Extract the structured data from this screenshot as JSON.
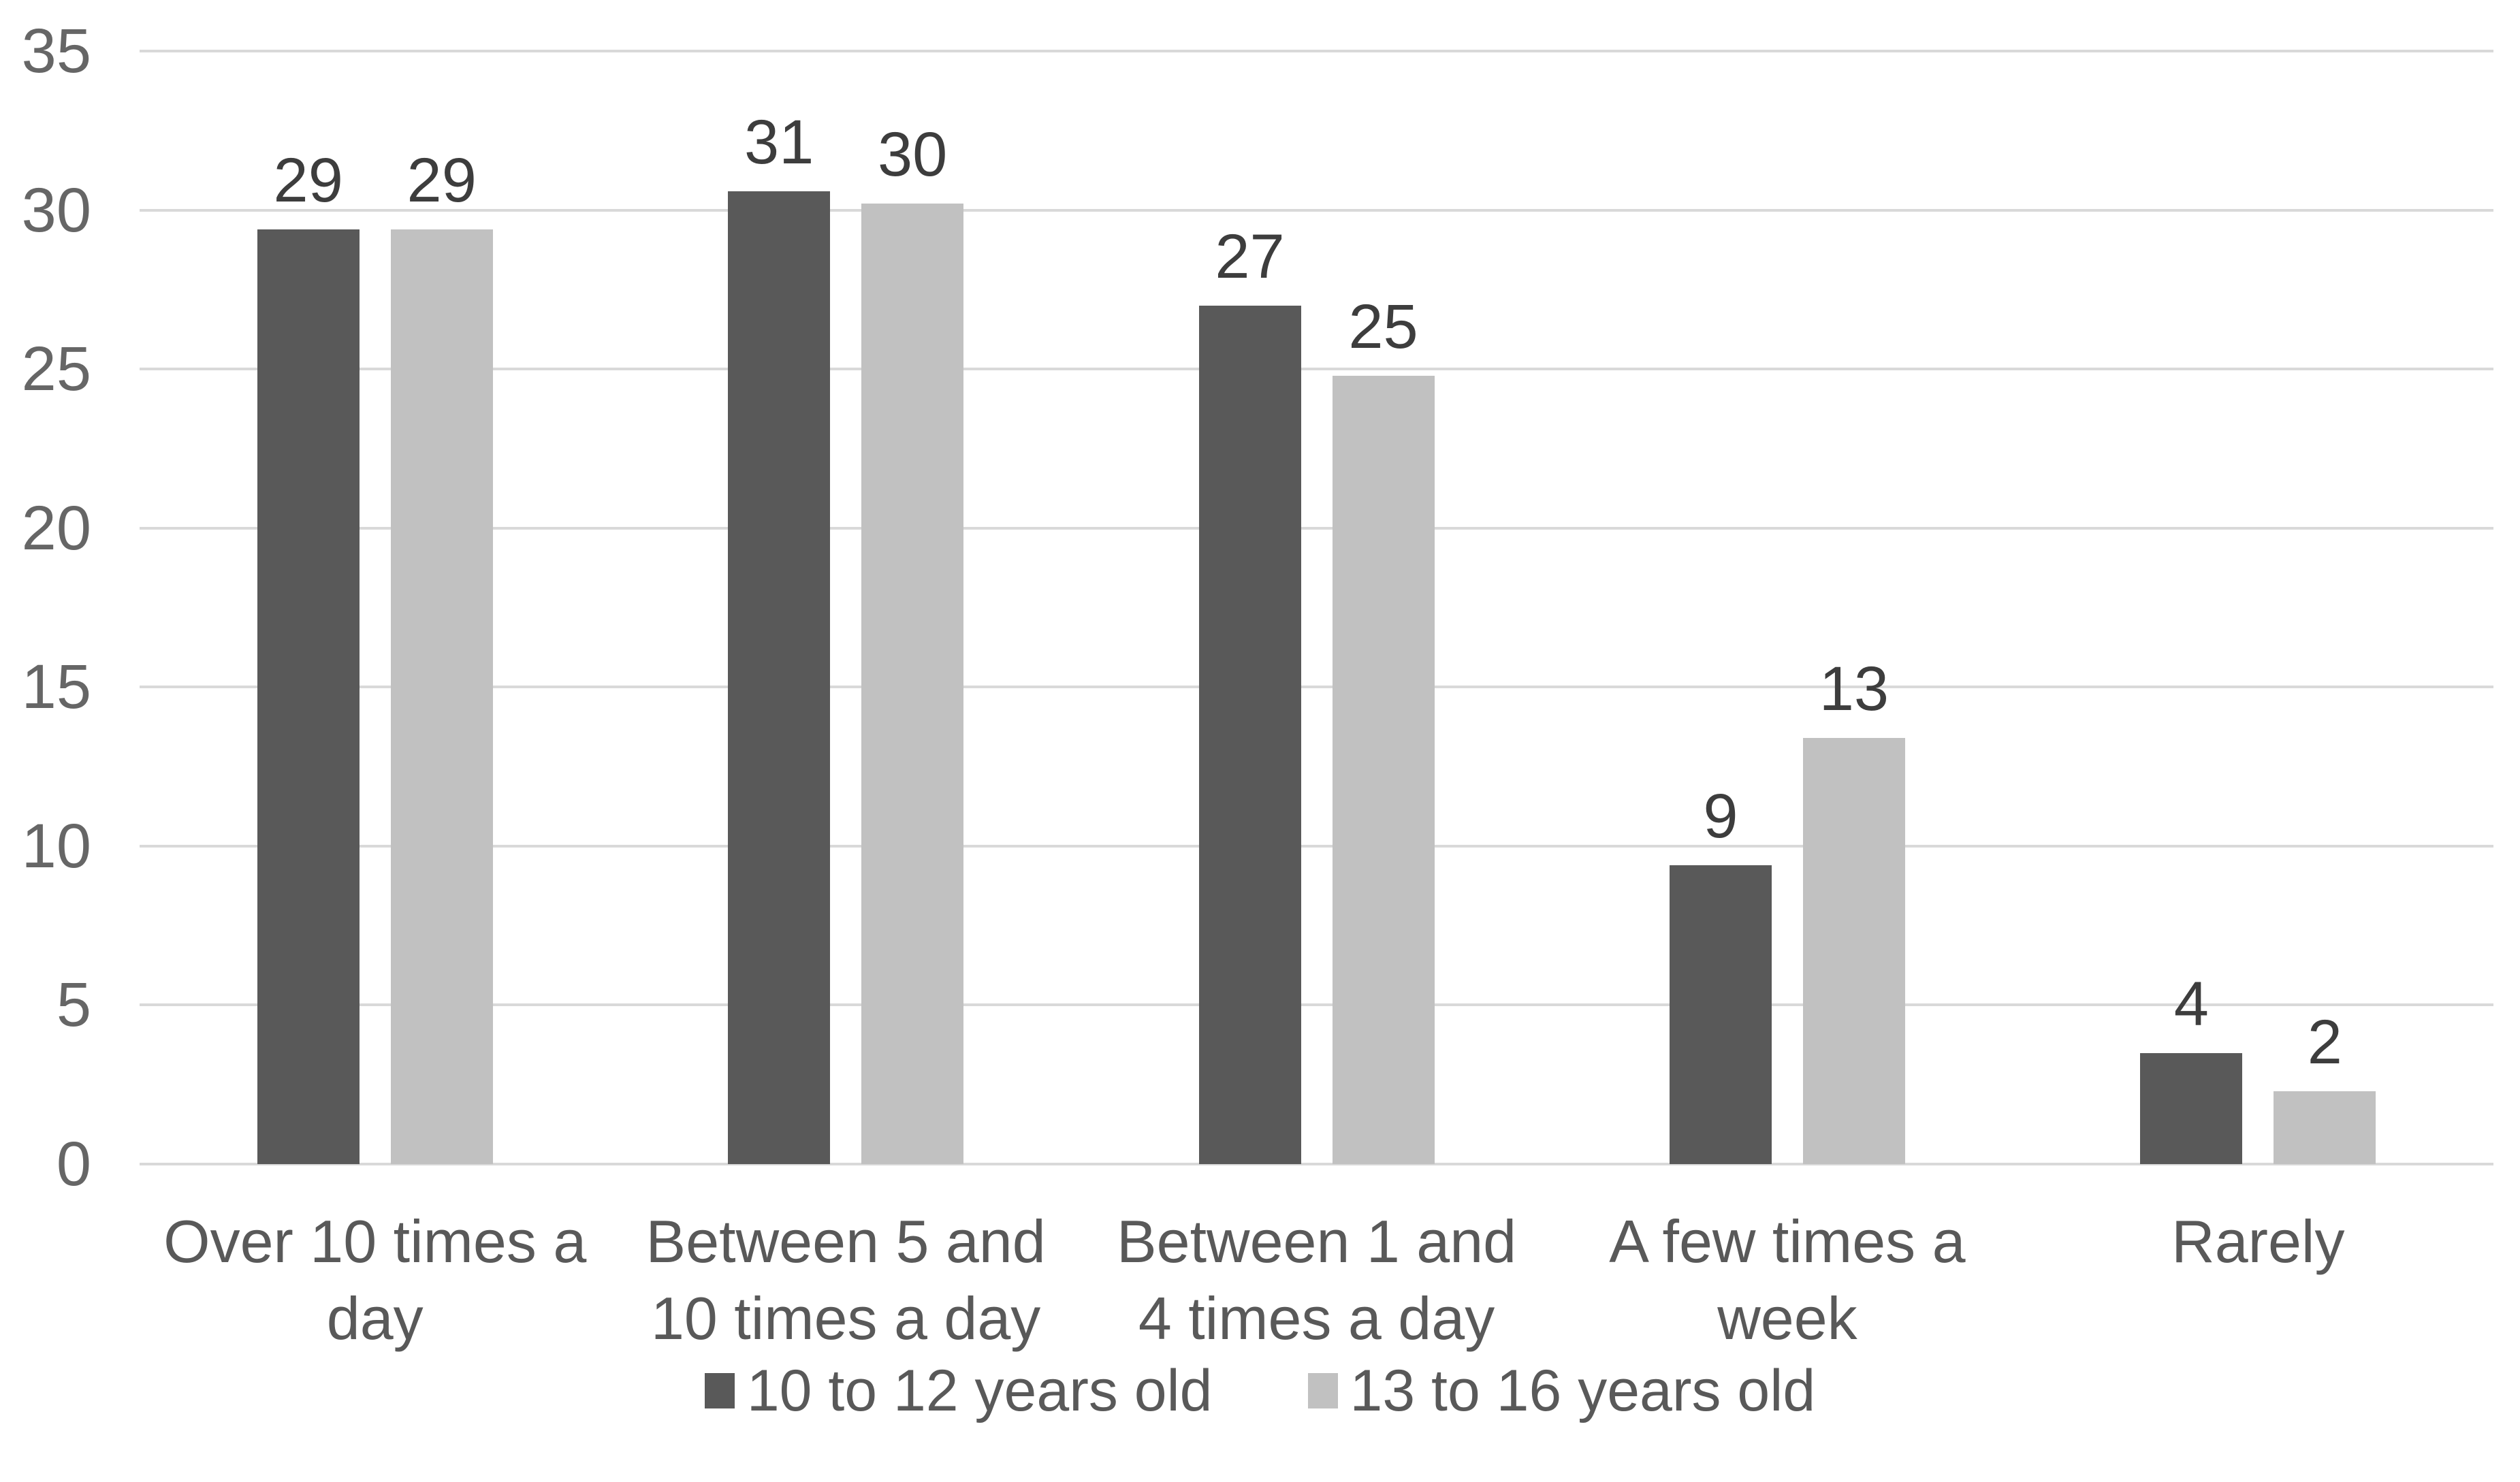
{
  "chart_data": {
    "type": "bar",
    "title": "",
    "xlabel": "",
    "ylabel": "",
    "categories": [
      "Over 10 times a day",
      "Between 5 and 10 times a day",
      "Between 1 and 4 times a day",
      "A few times a week",
      "Rarely"
    ],
    "series": [
      {
        "name": "10 to 12 years old",
        "color": "#595959",
        "values": [
          29,
          31,
          27,
          9,
          4
        ],
        "drawn_heights": [
          29.4,
          30.6,
          27,
          9.4,
          3.5
        ]
      },
      {
        "name": "13 to 16 years old",
        "color": "#c1c1c1",
        "values": [
          29,
          30,
          25,
          13,
          2
        ],
        "drawn_heights": [
          29.4,
          30.2,
          24.8,
          13.4,
          2.3
        ]
      }
    ],
    "ylim": [
      0,
      35
    ],
    "yticks": [
      0,
      5,
      10,
      15,
      20,
      25,
      30,
      35
    ],
    "grid": true,
    "data_labels": true,
    "legend_position": "bottom-center"
  },
  "style": {
    "background": "#ffffff",
    "gridline_color": "#d9d9d9",
    "tick_label_color": "#666666",
    "data_label_color": "#3d3d3d",
    "category_label_color": "#595959",
    "legend_label_color": "#595959"
  }
}
